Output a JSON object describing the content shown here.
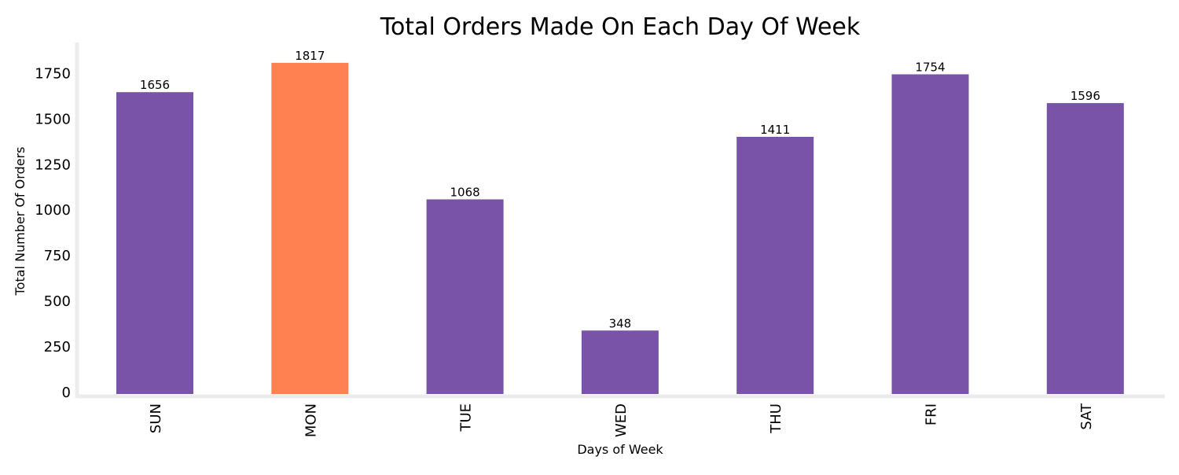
{
  "chart_data": {
    "type": "bar",
    "title": "Total Orders Made On Each Day Of Week",
    "xlabel": "Days of Week",
    "ylabel": "Total Number Of Orders",
    "categories": [
      "SUN",
      "MON",
      "TUE",
      "WED",
      "THU",
      "FRI",
      "SAT"
    ],
    "values": [
      1656,
      1817,
      1068,
      348,
      1411,
      1754,
      1596
    ],
    "value_labels": [
      "1656",
      "1817",
      "1068",
      "348",
      "1411",
      "1754",
      "1596"
    ],
    "ylim": [
      0,
      1920
    ],
    "yticks": [
      0,
      250,
      500,
      750,
      1000,
      1250,
      1500,
      1750
    ],
    "ytick_labels": [
      "0",
      "250",
      "500",
      "750",
      "1000",
      "1250",
      "1500",
      "1750"
    ],
    "grid": false,
    "legend": "none",
    "colors": {
      "bar": "#7853a8",
      "highlight": "#ff8050",
      "axis": "#ececec"
    },
    "highlight_index": 1
  }
}
